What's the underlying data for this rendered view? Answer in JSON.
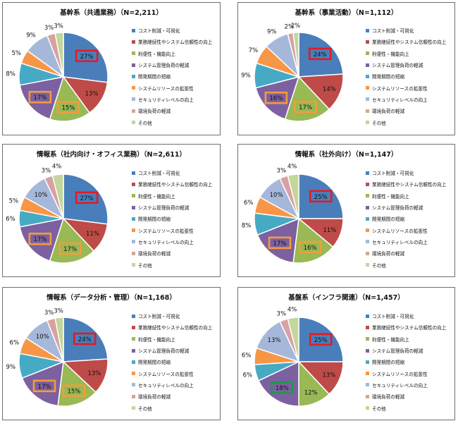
{
  "legend_categories": [
    "コスト削減・可視化",
    "業務継続性やシステム信頼性の向上",
    "利便性・機能向上",
    "システム管理負荷の軽減",
    "開発期間の短縮",
    "システムリソースの拡張性",
    "セキュリティレベルの向上",
    "環境負荷の軽減",
    "その他"
  ],
  "colors": [
    "#4a7ebb",
    "#be4b48",
    "#98b954",
    "#7d60a0",
    "#46aac5",
    "#f79646",
    "#a5b8da",
    "#d7a2a1",
    "#c3d69b"
  ],
  "highlight_colors": {
    "red": "#e31b23",
    "orange": "#f39c3c",
    "green": "#1a9a4a"
  },
  "chart_data": [
    {
      "type": "pie",
      "title": "基幹系（共通業務）（N=2,211）",
      "categories": [
        "コスト削減・可視化",
        "業務継続性やシステム信頼性の向上",
        "利便性・機能向上",
        "システム管理負荷の軽減",
        "開発期間の短縮",
        "システムリソースの拡張性",
        "セキュリティレベルの向上",
        "環境負荷の軽減",
        "その他"
      ],
      "values": [
        27,
        13,
        15,
        17,
        8,
        5,
        9,
        3,
        3
      ],
      "labels": [
        "27%",
        "13%",
        "15%",
        "17%",
        "8%",
        "5%",
        "9%",
        "3%",
        "3%"
      ],
      "highlighted": {
        "0": "red",
        "2": "orange",
        "3": "orange"
      },
      "legend": "right"
    },
    {
      "type": "pie",
      "title": "基幹系（事業活動）（N=1,112）",
      "categories": [
        "コスト削減・可視化",
        "業務継続性やシステム信頼性の向上",
        "利便性・機能向上",
        "システム管理負荷の軽減",
        "開発期間の短縮",
        "システムリソースの拡張性",
        "セキュリティレベルの向上",
        "環境負荷の軽減",
        "その他"
      ],
      "values": [
        24,
        14,
        17,
        16,
        9,
        7,
        9,
        2,
        2
      ],
      "labels": [
        "24%",
        "14%",
        "17%",
        "16%",
        "9%",
        "7%",
        "9%",
        "2%",
        "2%"
      ],
      "highlighted": {
        "0": "red",
        "2": "orange",
        "3": "orange"
      },
      "legend": "right"
    },
    {
      "type": "pie",
      "title": "情報系（社内向け・オフィス業務）（N=2,611）",
      "categories": [
        "コスト削減・可視化",
        "業務継続性やシステム信頼性の向上",
        "利便性・機能向上",
        "システム管理負荷の軽減",
        "開発期間の短縮",
        "システムリソースの拡張性",
        "セキュリティレベルの向上",
        "環境負荷の軽減",
        "その他"
      ],
      "values": [
        27,
        11,
        17,
        17,
        6,
        5,
        10,
        3,
        4
      ],
      "labels": [
        "27%",
        "11%",
        "17%",
        "17%",
        "6%",
        "5%",
        "10%",
        "3%",
        "4%"
      ],
      "highlighted": {
        "0": "red",
        "2": "orange",
        "3": "orange"
      },
      "legend": "right"
    },
    {
      "type": "pie",
      "title": "情報系（社外向け）（N=1,147）",
      "categories": [
        "コスト削減・可視化",
        "業務継続性やシステム信頼性の向上",
        "利便性・機能向上",
        "システム管理負荷の軽減",
        "開発期間の短縮",
        "システムリソースの拡張性",
        "セキュリティレベルの向上",
        "環境負荷の軽減",
        "その他"
      ],
      "values": [
        25,
        11,
        16,
        17,
        8,
        6,
        10,
        3,
        4
      ],
      "labels": [
        "25%",
        "11%",
        "16%",
        "17%",
        "8%",
        "6%",
        "10%",
        "3%",
        "4%"
      ],
      "highlighted": {
        "0": "red",
        "2": "orange",
        "3": "orange"
      },
      "legend": "right"
    },
    {
      "type": "pie",
      "title": "情報系（データ分析・管理）（N=1,168）",
      "categories": [
        "コスト削減・可視化",
        "業務継続性やシステム信頼性の向上",
        "利便性・機能向上",
        "システム管理負荷の軽減",
        "開発期間の短縮",
        "システムリソースの拡張性",
        "セキュリティレベルの向上",
        "環境負荷の軽減",
        "その他"
      ],
      "values": [
        24,
        13,
        15,
        17,
        9,
        6,
        10,
        3,
        3
      ],
      "labels": [
        "24%",
        "13%",
        "15%",
        "17%",
        "9%",
        "6%",
        "10%",
        "3%",
        "3%"
      ],
      "highlighted": {
        "0": "red",
        "2": "orange",
        "3": "orange"
      },
      "legend": "right"
    },
    {
      "type": "pie",
      "title": "基盤系（インフラ関連）（N=1,457）",
      "categories": [
        "コスト削減・可視化",
        "業務継続性やシステム信頼性の向上",
        "利便性・機能向上",
        "システム管理負荷の軽減",
        "開発期間の短縮",
        "システムリソースの拡張性",
        "セキュリティレベルの向上",
        "環境負荷の軽減",
        "その他"
      ],
      "values": [
        25,
        13,
        12,
        18,
        6,
        6,
        13,
        3,
        4
      ],
      "labels": [
        "25%",
        "13%",
        "12%",
        "18%",
        "6%",
        "6%",
        "13%",
        "3%",
        "4%"
      ],
      "highlighted": {
        "0": "red",
        "3": "green"
      },
      "legend": "right"
    }
  ]
}
